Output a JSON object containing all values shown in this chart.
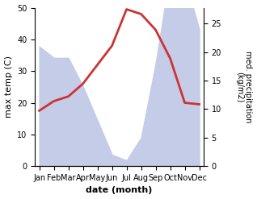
{
  "months": [
    "Jan",
    "Feb",
    "Mar",
    "Apr",
    "May",
    "Jun",
    "Jul",
    "Aug",
    "Sep",
    "Oct",
    "Nov",
    "Dec"
  ],
  "month_positions": [
    0,
    1,
    2,
    3,
    4,
    5,
    6,
    7,
    8,
    9,
    10,
    11
  ],
  "temperature": [
    17.5,
    20.5,
    22.0,
    26.0,
    32.0,
    38.0,
    49.5,
    48.0,
    43.0,
    34.0,
    20.0,
    19.5
  ],
  "precipitation": [
    21.0,
    19.0,
    19.0,
    14.0,
    8.0,
    2.0,
    1.0,
    5.0,
    18.0,
    34.0,
    33.0,
    24.0
  ],
  "temp_color": "#cc3333",
  "precip_fill_color": "#c5cce8",
  "temp_ylim": [
    0,
    50
  ],
  "precip_ylim": [
    0,
    27.8
  ],
  "temp_yticks": [
    0,
    10,
    20,
    30,
    40,
    50
  ],
  "precip_yticks": [
    0,
    5,
    10,
    15,
    20,
    25
  ],
  "xlabel": "date (month)",
  "ylabel_left": "max temp (C)",
  "ylabel_right": "med. precipitation\n(kg/m2)",
  "bg_color": "#ffffff"
}
